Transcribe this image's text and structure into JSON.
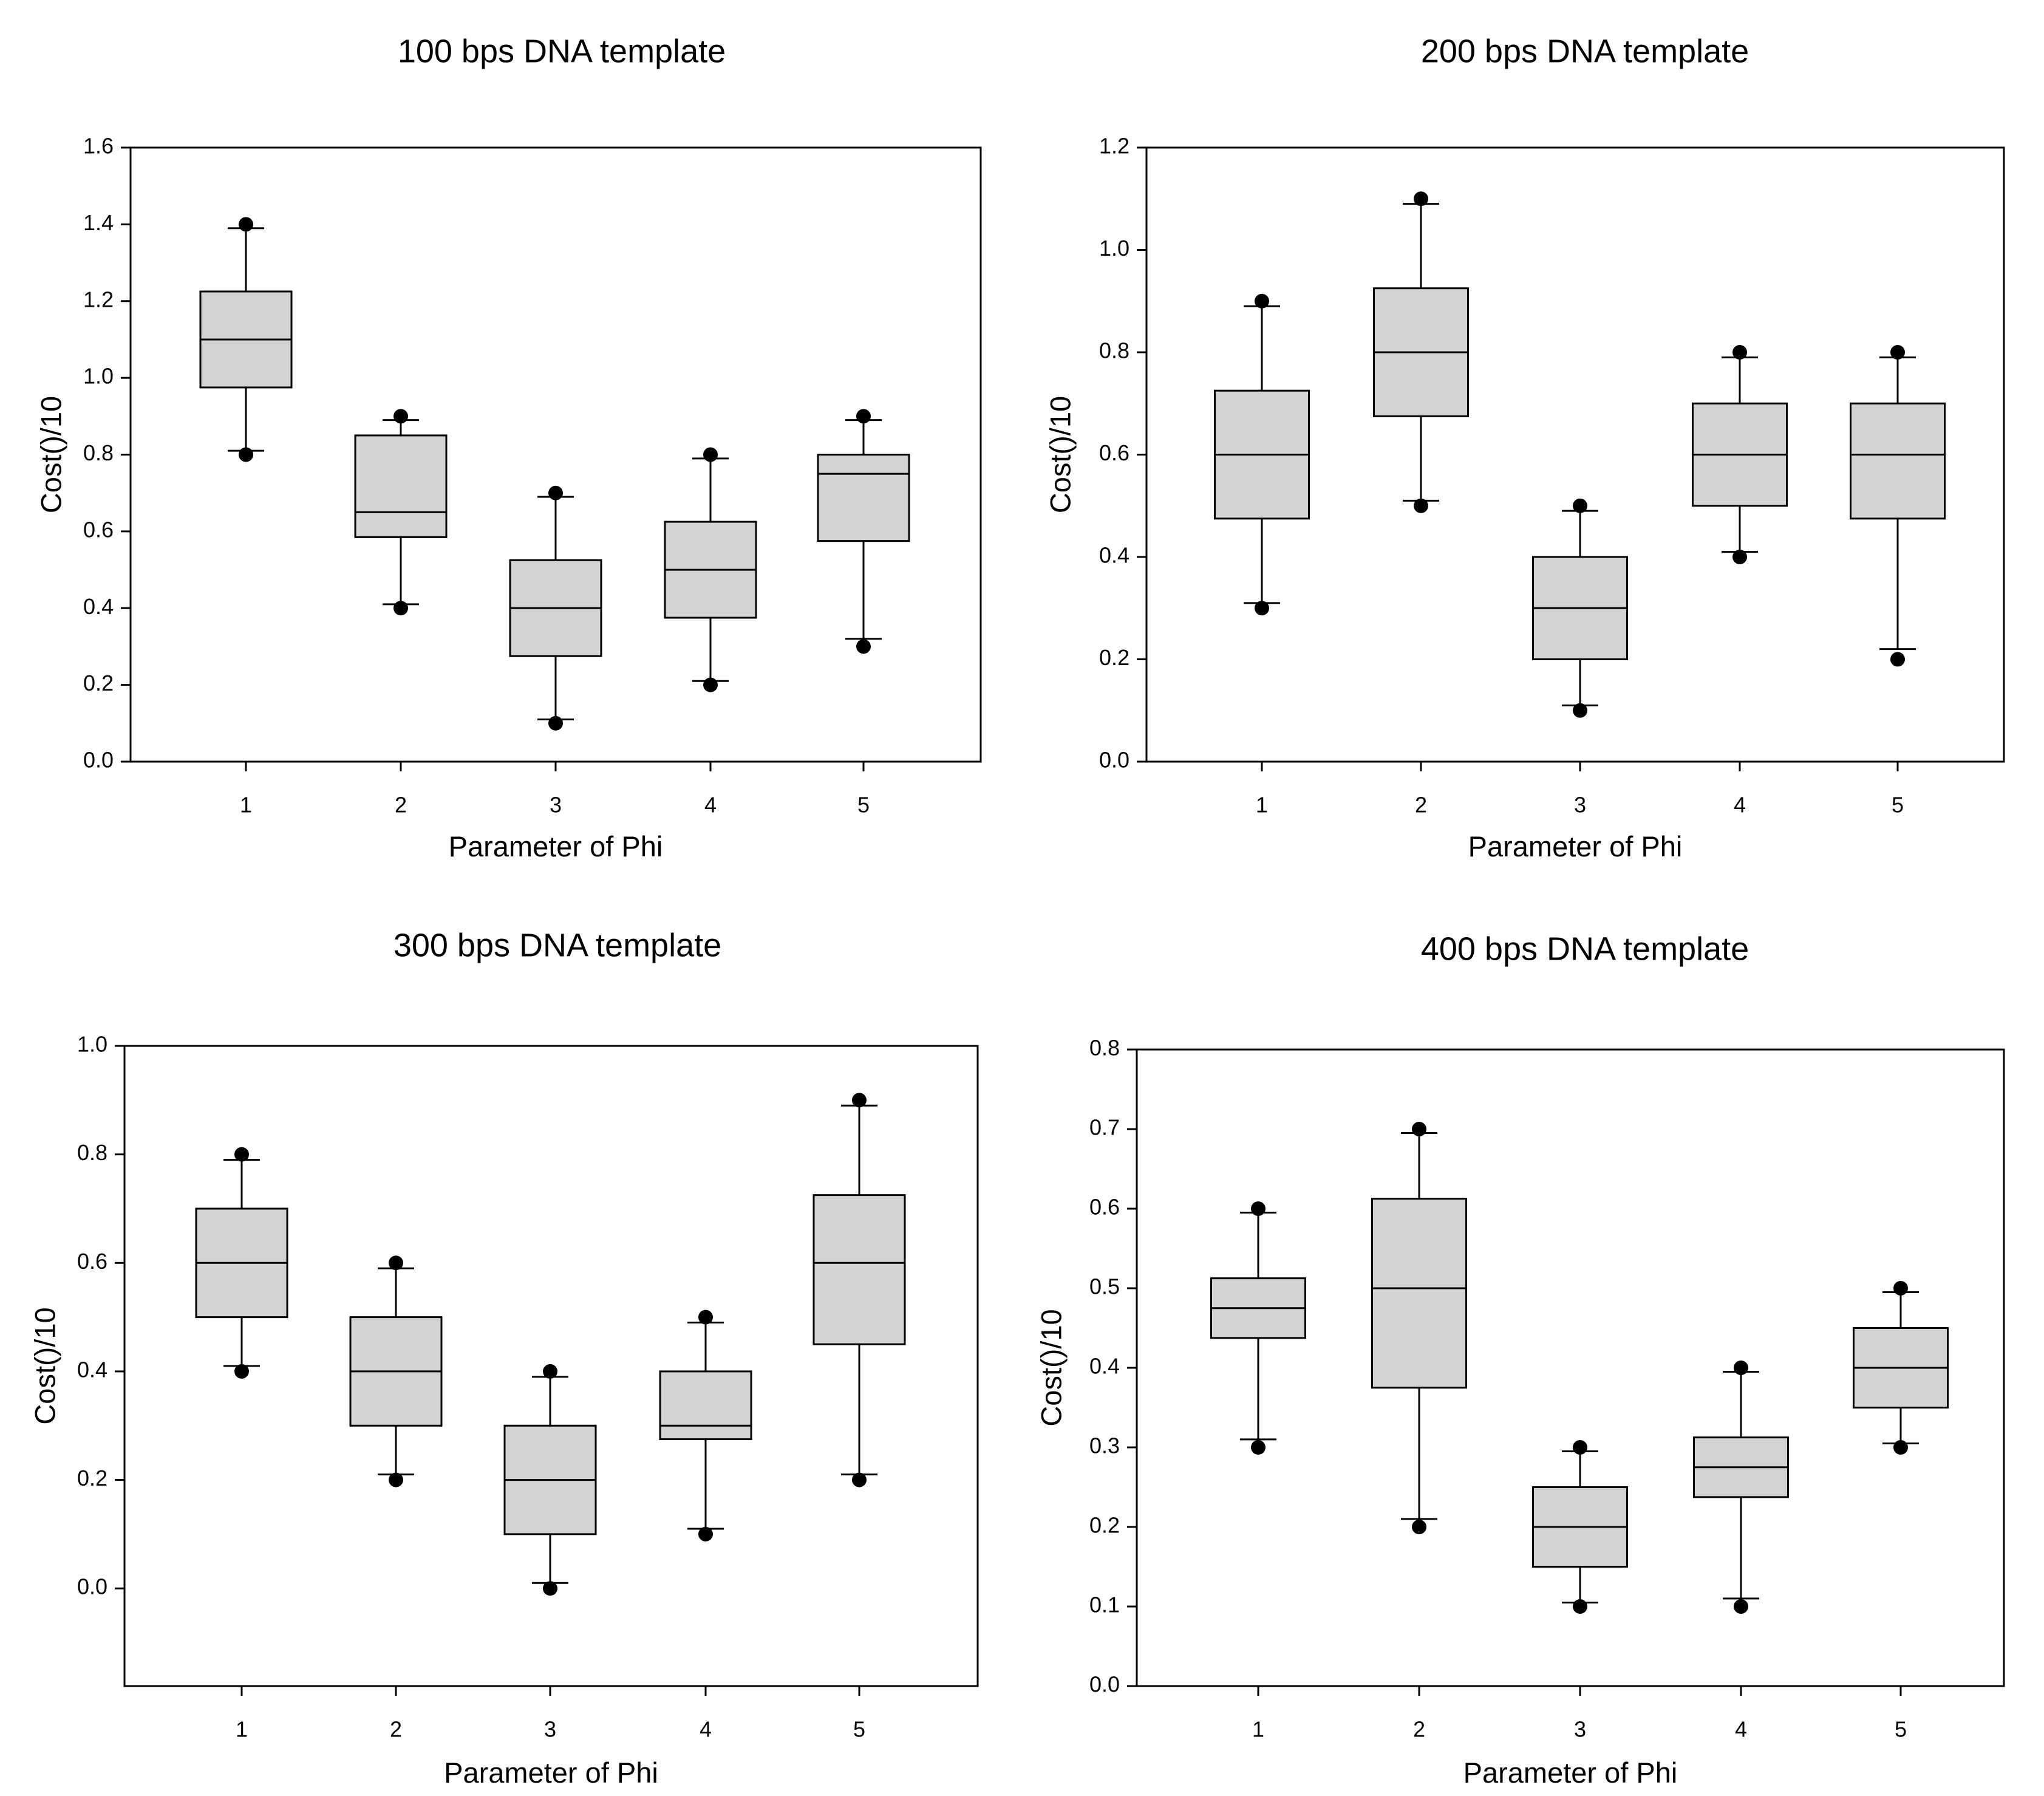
{
  "chart_data": [
    {
      "type": "box",
      "title": "100 bps DNA template",
      "xlabel": "Parameter of Phi",
      "ylabel": "Cost()/10",
      "ylim": [
        0.0,
        1.6
      ],
      "yticks": [
        "0.0",
        "0.2",
        "0.4",
        "0.6",
        "0.8",
        "1.0",
        "1.2",
        "1.4",
        "1.6"
      ],
      "categories": [
        "1",
        "2",
        "3",
        "4",
        "5"
      ],
      "boxes": [
        {
          "category": "1",
          "q1": 0.975,
          "median": 1.1,
          "q3": 1.225,
          "whisker_low": 0.81,
          "whisker_high": 1.39,
          "outliers": [
            0.8,
            1.4
          ]
        },
        {
          "category": "2",
          "q1": 0.585,
          "median": 0.65,
          "q3": 0.85,
          "whisker_low": 0.41,
          "whisker_high": 0.89,
          "outliers": [
            0.4,
            0.9
          ]
        },
        {
          "category": "3",
          "q1": 0.275,
          "median": 0.4,
          "q3": 0.525,
          "whisker_low": 0.11,
          "whisker_high": 0.69,
          "outliers": [
            0.1,
            0.7
          ]
        },
        {
          "category": "4",
          "q1": 0.375,
          "median": 0.5,
          "q3": 0.625,
          "whisker_low": 0.21,
          "whisker_high": 0.79,
          "outliers": [
            0.2,
            0.8
          ]
        },
        {
          "category": "5",
          "q1": 0.575,
          "median": 0.75,
          "q3": 0.8,
          "whisker_low": 0.32,
          "whisker_high": 0.89,
          "outliers": [
            0.3,
            0.9
          ]
        }
      ]
    },
    {
      "type": "box",
      "title": "200 bps DNA template",
      "xlabel": "Parameter of Phi",
      "ylabel": "Cost()/10",
      "ylim": [
        0.0,
        1.2
      ],
      "yticks": [
        "0.0",
        "0.2",
        "0.4",
        "0.6",
        "0.8",
        "1.0",
        "1.2"
      ],
      "categories": [
        "1",
        "2",
        "3",
        "4",
        "5"
      ],
      "boxes": [
        {
          "category": "1",
          "q1": 0.475,
          "median": 0.6,
          "q3": 0.725,
          "whisker_low": 0.31,
          "whisker_high": 0.89,
          "outliers": [
            0.3,
            0.9
          ]
        },
        {
          "category": "2",
          "q1": 0.675,
          "median": 0.8,
          "q3": 0.925,
          "whisker_low": 0.51,
          "whisker_high": 1.09,
          "outliers": [
            0.5,
            1.1
          ]
        },
        {
          "category": "3",
          "q1": 0.2,
          "median": 0.3,
          "q3": 0.4,
          "whisker_low": 0.11,
          "whisker_high": 0.49,
          "outliers": [
            0.1,
            0.5
          ]
        },
        {
          "category": "4",
          "q1": 0.5,
          "median": 0.6,
          "q3": 0.7,
          "whisker_low": 0.41,
          "whisker_high": 0.79,
          "outliers": [
            0.4,
            0.8
          ]
        },
        {
          "category": "5",
          "q1": 0.475,
          "median": 0.6,
          "q3": 0.7,
          "whisker_low": 0.22,
          "whisker_high": 0.79,
          "outliers": [
            0.2,
            0.8
          ]
        }
      ]
    },
    {
      "type": "box",
      "title": "300 bps DNA template",
      "xlabel": "Parameter of Phi",
      "ylabel": "Cost()/10",
      "ylim": [
        -0.18,
        1.0
      ],
      "yticks": [
        "0.0",
        "0.2",
        "0.4",
        "0.6",
        "0.8",
        "1.0"
      ],
      "categories": [
        "1",
        "2",
        "3",
        "4",
        "5"
      ],
      "boxes": [
        {
          "category": "1",
          "q1": 0.5,
          "median": 0.6,
          "q3": 0.7,
          "whisker_low": 0.41,
          "whisker_high": 0.79,
          "outliers": [
            0.4,
            0.8
          ]
        },
        {
          "category": "2",
          "q1": 0.3,
          "median": 0.4,
          "q3": 0.5,
          "whisker_low": 0.21,
          "whisker_high": 0.59,
          "outliers": [
            0.2,
            0.6
          ]
        },
        {
          "category": "3",
          "q1": 0.1,
          "median": 0.2,
          "q3": 0.3,
          "whisker_low": 0.01,
          "whisker_high": 0.39,
          "outliers": [
            0.0,
            0.4
          ]
        },
        {
          "category": "4",
          "q1": 0.275,
          "median": 0.3,
          "q3": 0.4,
          "whisker_low": 0.11,
          "whisker_high": 0.49,
          "outliers": [
            0.1,
            0.5
          ]
        },
        {
          "category": "5",
          "q1": 0.45,
          "median": 0.6,
          "q3": 0.725,
          "whisker_low": 0.21,
          "whisker_high": 0.89,
          "outliers": [
            0.2,
            0.9
          ]
        }
      ]
    },
    {
      "type": "box",
      "title": "400 bps DNA template",
      "xlabel": "Parameter of Phi",
      "ylabel": "Cost()/10",
      "ylim": [
        0.0,
        0.8
      ],
      "yticks": [
        "0.0",
        "0.1",
        "0.2",
        "0.3",
        "0.4",
        "0.5",
        "0.6",
        "0.7",
        "0.8"
      ],
      "categories": [
        "1",
        "2",
        "3",
        "4",
        "5"
      ],
      "boxes": [
        {
          "category": "1",
          "q1": 0.4375,
          "median": 0.475,
          "q3": 0.5125,
          "whisker_low": 0.31,
          "whisker_high": 0.595,
          "outliers": [
            0.3,
            0.6
          ]
        },
        {
          "category": "2",
          "q1": 0.375,
          "median": 0.5,
          "q3": 0.6125,
          "whisker_low": 0.21,
          "whisker_high": 0.695,
          "outliers": [
            0.2,
            0.7
          ]
        },
        {
          "category": "3",
          "q1": 0.15,
          "median": 0.2,
          "q3": 0.25,
          "whisker_low": 0.105,
          "whisker_high": 0.295,
          "outliers": [
            0.1,
            0.3
          ]
        },
        {
          "category": "4",
          "q1": 0.2375,
          "median": 0.275,
          "q3": 0.3125,
          "whisker_low": 0.11,
          "whisker_high": 0.395,
          "outliers": [
            0.1,
            0.4
          ]
        },
        {
          "category": "5",
          "q1": 0.35,
          "median": 0.4,
          "q3": 0.45,
          "whisker_low": 0.305,
          "whisker_high": 0.495,
          "outliers": [
            0.3,
            0.5
          ]
        }
      ]
    }
  ]
}
